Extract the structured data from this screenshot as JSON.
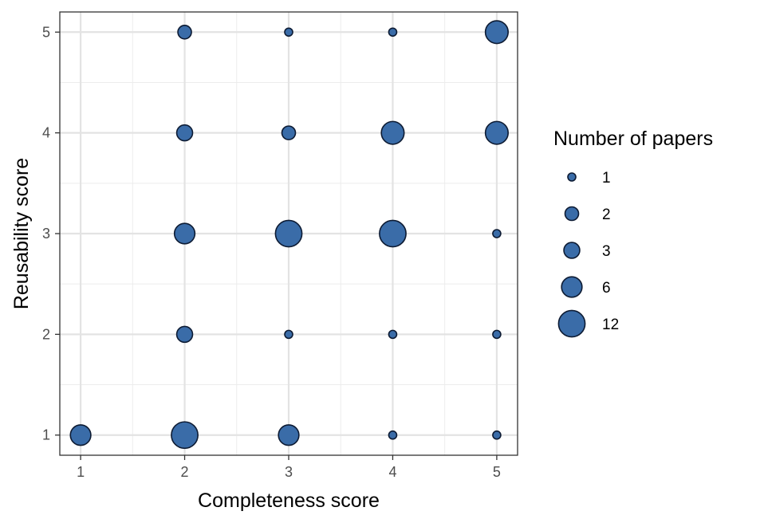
{
  "chart_data": {
    "type": "scatter",
    "xlabel": "Completeness score",
    "ylabel": "Reusability score",
    "xlim": [
      0.8,
      5.2
    ],
    "ylim": [
      0.8,
      5.2
    ],
    "x_ticks": [
      "1",
      "2",
      "3",
      "4",
      "5"
    ],
    "y_ticks": [
      "1",
      "2",
      "3",
      "4",
      "5"
    ],
    "grid": true,
    "legend_position": "right",
    "legend": {
      "title": "Number of papers",
      "entries": [
        {
          "label": "1",
          "value": 1
        },
        {
          "label": "2",
          "value": 2
        },
        {
          "label": "3",
          "value": 3
        },
        {
          "label": "6",
          "value": 6
        },
        {
          "label": "12",
          "value": 12
        }
      ]
    },
    "fill_color": "#3a6ca8",
    "stroke_color": "#0d1b33",
    "points": [
      {
        "x": 1,
        "y": 1,
        "n": 6
      },
      {
        "x": 2,
        "y": 1,
        "n": 12
      },
      {
        "x": 3,
        "y": 1,
        "n": 6
      },
      {
        "x": 4,
        "y": 1,
        "n": 1
      },
      {
        "x": 5,
        "y": 1,
        "n": 1
      },
      {
        "x": 2,
        "y": 2,
        "n": 3
      },
      {
        "x": 3,
        "y": 2,
        "n": 1
      },
      {
        "x": 4,
        "y": 2,
        "n": 1
      },
      {
        "x": 5,
        "y": 2,
        "n": 1
      },
      {
        "x": 2,
        "y": 3,
        "n": 6
      },
      {
        "x": 3,
        "y": 3,
        "n": 12
      },
      {
        "x": 4,
        "y": 3,
        "n": 12
      },
      {
        "x": 5,
        "y": 3,
        "n": 1
      },
      {
        "x": 2,
        "y": 4,
        "n": 3
      },
      {
        "x": 3,
        "y": 4,
        "n": 2
      },
      {
        "x": 4,
        "y": 4,
        "n": 8
      },
      {
        "x": 5,
        "y": 4,
        "n": 8
      },
      {
        "x": 2,
        "y": 5,
        "n": 2
      },
      {
        "x": 3,
        "y": 5,
        "n": 1
      },
      {
        "x": 4,
        "y": 5,
        "n": 1
      },
      {
        "x": 5,
        "y": 5,
        "n": 8
      }
    ]
  }
}
